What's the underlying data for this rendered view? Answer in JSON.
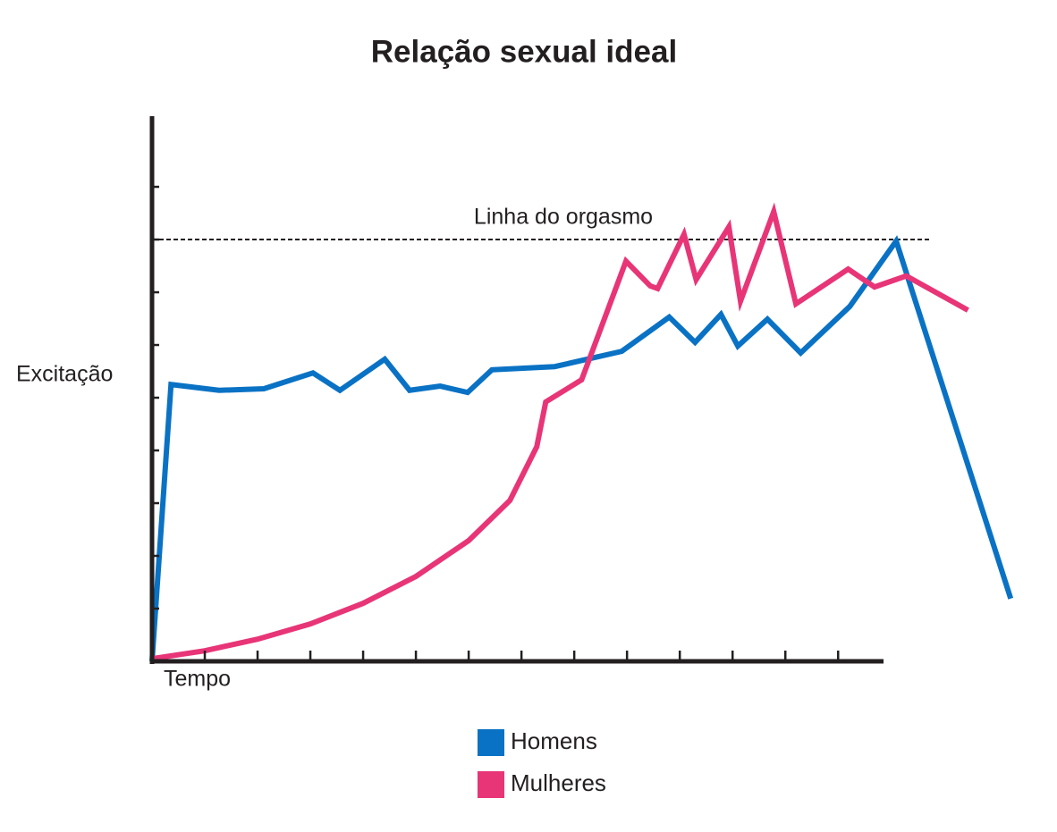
{
  "chart_data": {
    "type": "line",
    "title": "Relação sexual ideal",
    "ylabel": "Excitação",
    "xlabel": "Tempo",
    "xlim": [
      0,
      13.86
    ],
    "ylim": [
      0,
      10.34
    ],
    "xticks": [
      1,
      2,
      3,
      4,
      5,
      6,
      7,
      8,
      9,
      10,
      11,
      12,
      13
    ],
    "yticks": [
      1,
      2,
      3,
      4,
      5,
      6,
      7,
      8,
      9
    ],
    "orgasm_line": {
      "label": "Linha do orgasmo",
      "value": 8
    },
    "series": [
      {
        "name": "Homens",
        "color": "#0a72c4",
        "x": [
          0,
          0.36,
          1.27,
          2.12,
          3.05,
          3.56,
          4.41,
          4.88,
          5.46,
          5.98,
          6.44,
          7.63,
          8.9,
          9.8,
          10.29,
          10.78,
          11.1,
          11.66,
          12.29,
          13.22,
          14.1,
          16.27
        ],
        "values": [
          0,
          5.25,
          5.14,
          5.17,
          5.47,
          5.14,
          5.73,
          5.14,
          5.22,
          5.1,
          5.53,
          5.59,
          5.88,
          6.53,
          6.05,
          6.58,
          5.98,
          6.49,
          5.85,
          6.73,
          7.97,
          1.19
        ]
      },
      {
        "name": "Mulheres",
        "color": "#e83577",
        "x": [
          0,
          1,
          2,
          3,
          4,
          5,
          6,
          6.78,
          7.29,
          7.46,
          8.14,
          8.98,
          9.44,
          9.58,
          10.08,
          10.31,
          10.93,
          11.15,
          11.78,
          12.2,
          13.19,
          13.69,
          14.29,
          15.46
        ],
        "values": [
          0.05,
          0.2,
          0.42,
          0.71,
          1.1,
          1.61,
          2.29,
          3.05,
          4.07,
          4.92,
          5.34,
          7.59,
          7.12,
          7.07,
          8.1,
          7.24,
          8.24,
          6.83,
          8.53,
          6.78,
          7.44,
          7.1,
          7.31,
          6.66
        ]
      }
    ]
  }
}
